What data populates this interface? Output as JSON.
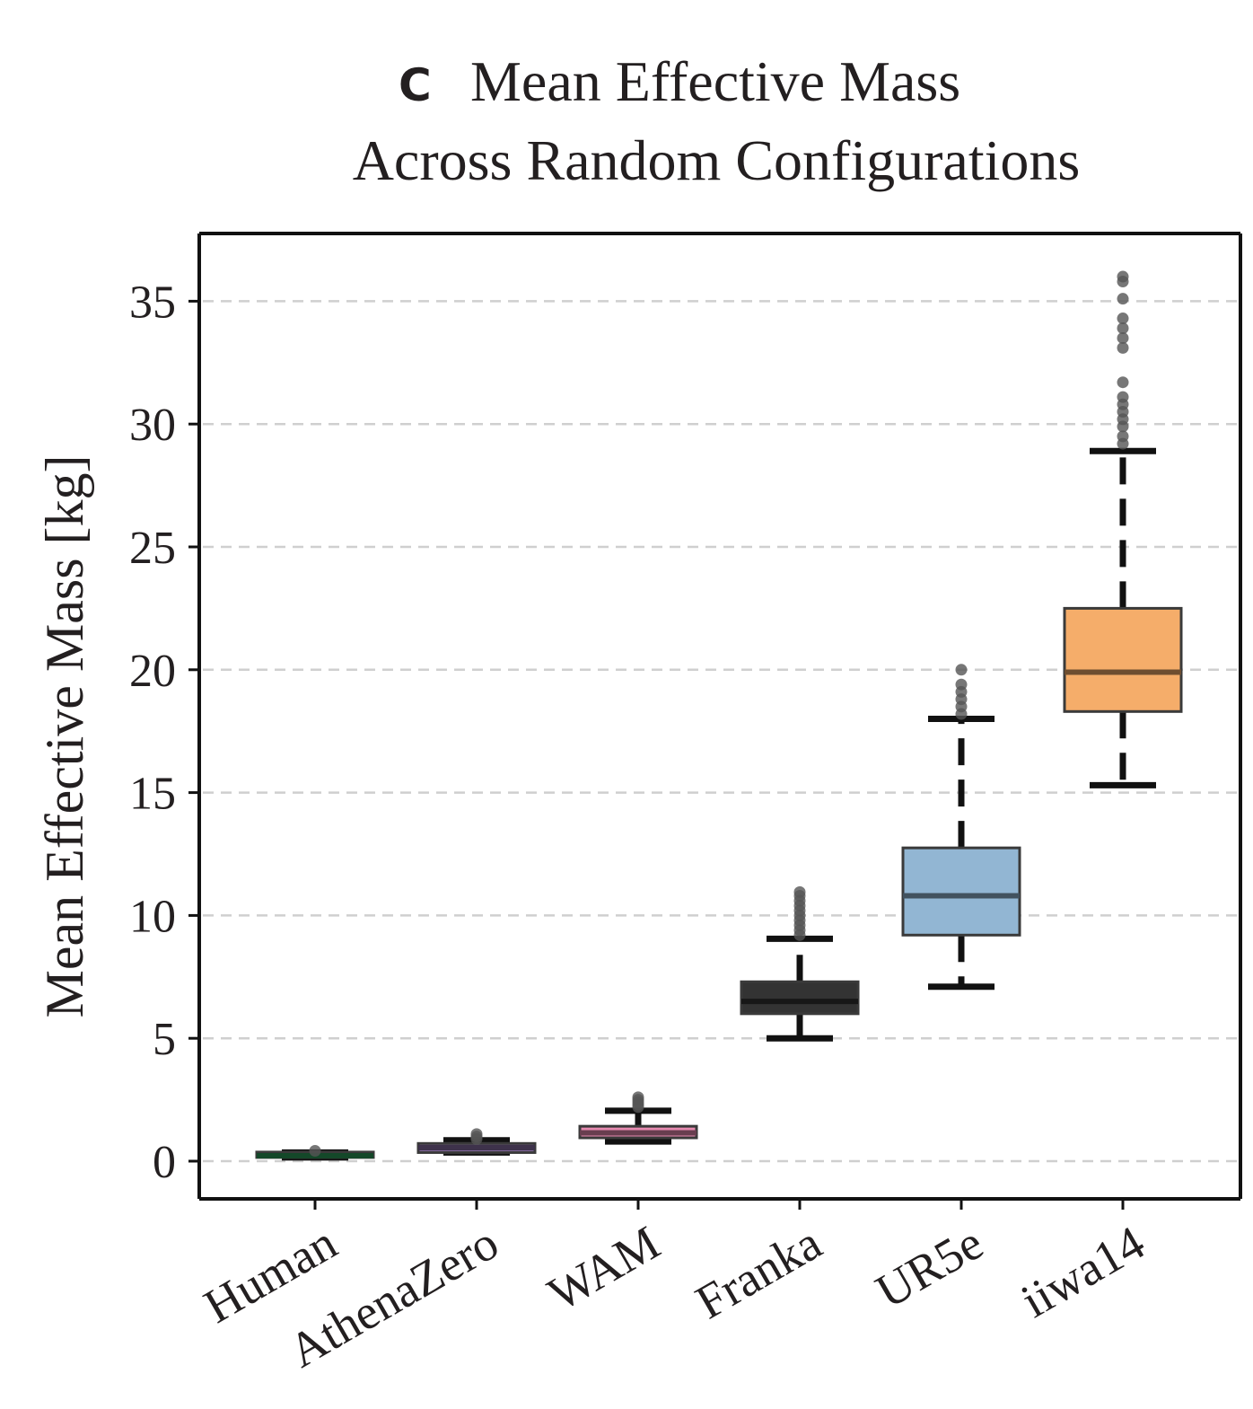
{
  "chart_data": {
    "type": "box",
    "panel_letter": "C",
    "title": [
      "Mean Effective Mass",
      "Across Random Configurations"
    ],
    "xlabel": "",
    "ylabel": "Mean Effective Mass [kg]",
    "ylim": [
      -1.5,
      37.8
    ],
    "yticks": [
      0,
      5,
      10,
      15,
      20,
      25,
      30,
      35
    ],
    "grid": "horizontal-dashed",
    "categories": [
      "Human",
      "AthenaZero",
      "WAM",
      "Franka",
      "UR5e",
      "iiwa14"
    ],
    "boxes": [
      {
        "name": "Human",
        "min": 0.15,
        "q1": 0.15,
        "median": 0.22,
        "q3": 0.35,
        "max": 0.35,
        "fliers": [
          0.42
        ],
        "color": "#2ca05a"
      },
      {
        "name": "AthenaZero",
        "min": 0.35,
        "q1": 0.35,
        "median": 0.55,
        "q3": 0.72,
        "max": 0.85,
        "fliers": [
          0.9,
          1.0,
          1.1
        ],
        "color": "#8a6fa6"
      },
      {
        "name": "WAM",
        "min": 0.8,
        "q1": 0.95,
        "median": 1.15,
        "q3": 1.42,
        "max": 2.05,
        "fliers": [
          2.2,
          2.3,
          2.4,
          2.5,
          2.6
        ],
        "color": "#e78ab0"
      },
      {
        "name": "Franka",
        "min": 5.0,
        "q1": 6.0,
        "median": 6.5,
        "q3": 7.3,
        "max": 9.05,
        "fliers": [
          9.2,
          9.4,
          9.6,
          9.8,
          10.0,
          10.2,
          10.4,
          10.6,
          10.8,
          10.95
        ],
        "color": "#333333"
      },
      {
        "name": "UR5e",
        "min": 7.1,
        "q1": 9.2,
        "median": 10.8,
        "q3": 12.75,
        "max": 18.0,
        "fliers": [
          18.2,
          18.5,
          18.8,
          19.1,
          19.4,
          20.0
        ],
        "color": "#92b6d3"
      },
      {
        "name": "iiwa14",
        "min": 15.3,
        "q1": 18.3,
        "median": 19.9,
        "q3": 22.5,
        "max": 28.9,
        "fliers": [
          29.2,
          29.5,
          29.9,
          30.2,
          30.5,
          30.8,
          31.1,
          31.7,
          33.1,
          33.5,
          33.9,
          34.3,
          35.1,
          35.8,
          36.0
        ],
        "color": "#f5ad6a"
      }
    ]
  }
}
